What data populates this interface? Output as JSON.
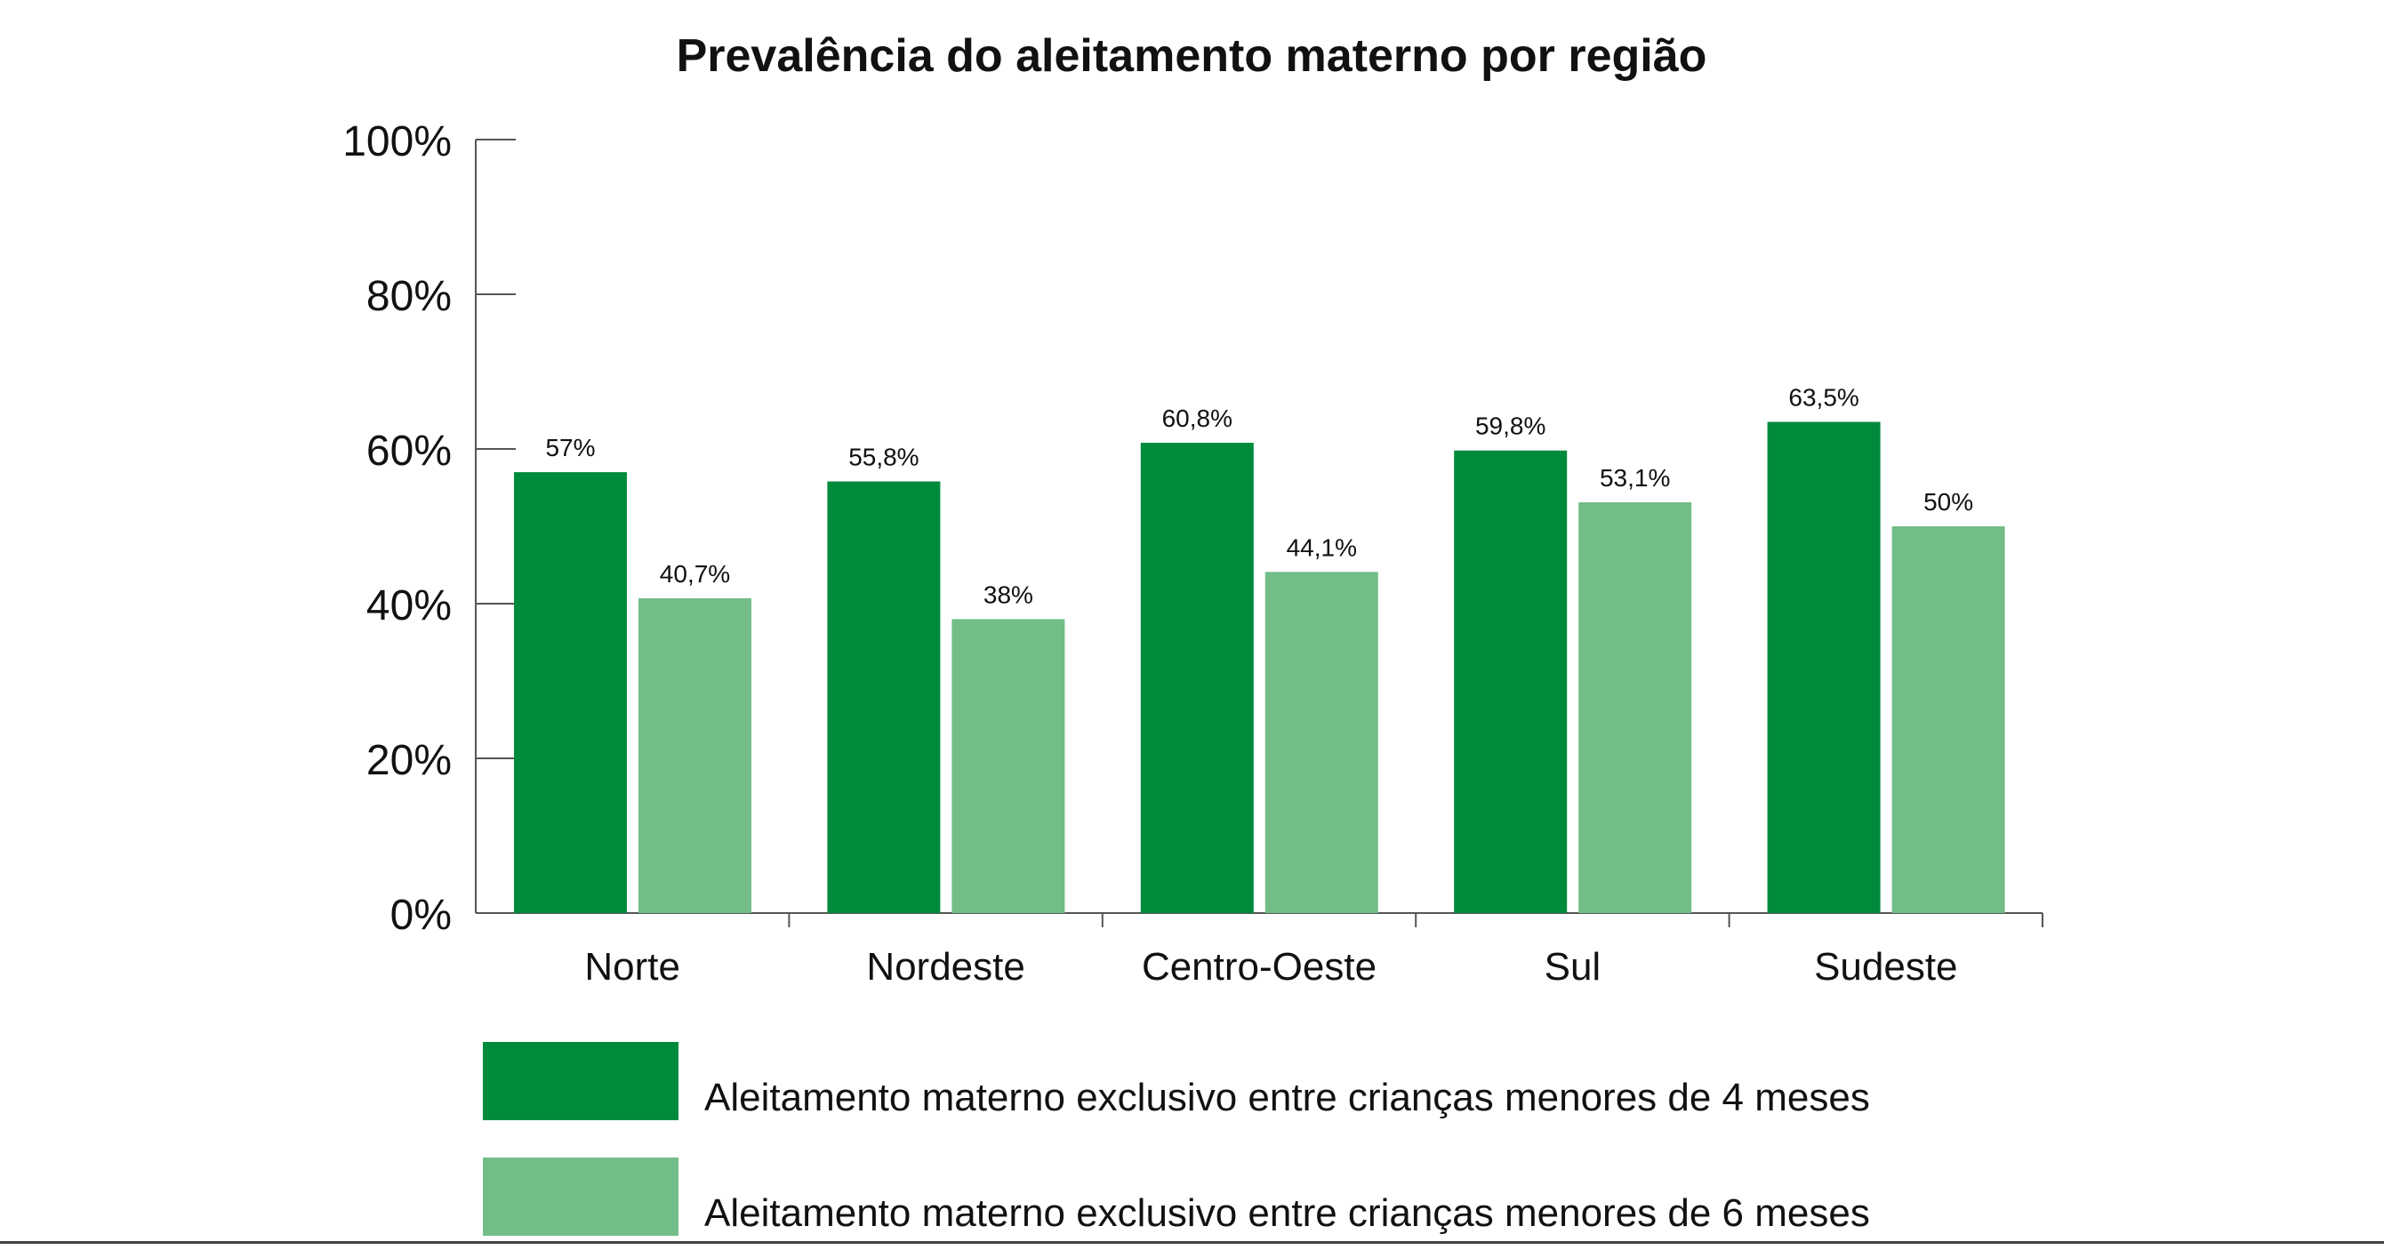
{
  "chart_data": {
    "type": "bar",
    "title": "Prevalência do aleitamento materno por região",
    "xlabel": "",
    "ylabel": "",
    "ylim": [
      0,
      100
    ],
    "yticks": [
      "0%",
      "20%",
      "40%",
      "60%",
      "80%",
      "100%"
    ],
    "ytick_values": [
      0,
      20,
      40,
      60,
      80,
      100
    ],
    "categories": [
      "Norte",
      "Nordeste",
      "Centro-Oeste",
      "Sul",
      "Sudeste"
    ],
    "series": [
      {
        "name": "Aleitamento materno exclusivo entre crianças menores de 4 meses",
        "values": [
          57,
          55.8,
          60.8,
          59.8,
          63.5
        ],
        "labels": [
          "57%",
          "55,8%",
          "60,8%",
          "59,8%",
          "63,5%"
        ],
        "color": "#008a3c"
      },
      {
        "name": "Aleitamento materno exclusivo entre crianças menores de 6 meses",
        "values": [
          40.7,
          38,
          44.1,
          53.1,
          50
        ],
        "labels": [
          "40,7%",
          "38%",
          "44,1%",
          "53,1%",
          "50%"
        ],
        "color": "#72bd88"
      }
    ],
    "grid": false,
    "legend_position": "bottom"
  }
}
